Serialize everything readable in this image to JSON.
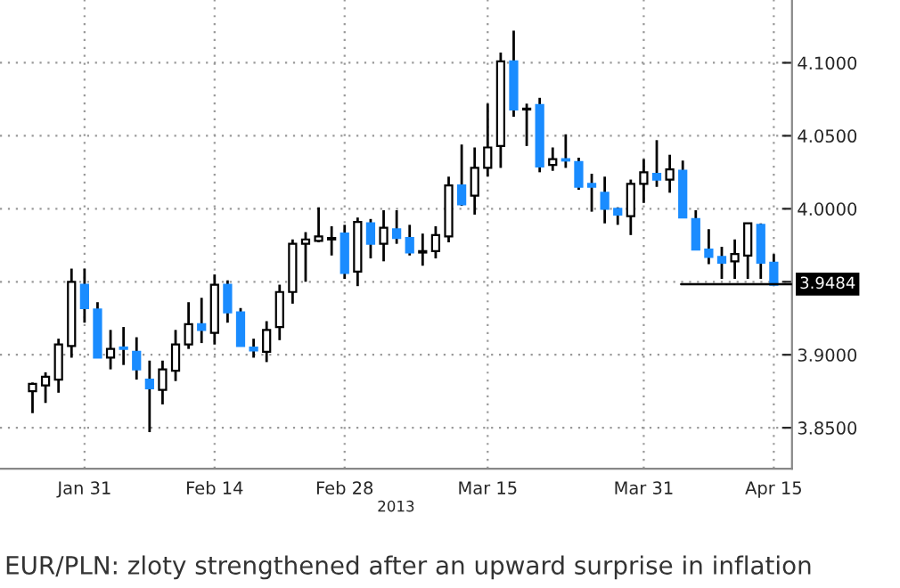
{
  "chart_data": {
    "type": "candlestick",
    "title": "EUR/PLN: zloty strengthened after an upward surprise in inflation",
    "xlabel": "2013",
    "categories": [
      null,
      null,
      null,
      null,
      "Jan 31",
      null,
      null,
      null,
      null,
      null,
      null,
      null,
      null,
      null,
      "Feb 14",
      null,
      null,
      null,
      null,
      null,
      null,
      null,
      null,
      null,
      "Feb 28",
      null,
      null,
      null,
      null,
      null,
      null,
      null,
      null,
      null,
      null,
      "Mar 15",
      null,
      null,
      null,
      null,
      null,
      null,
      null,
      null,
      null,
      null,
      null,
      "Mar 31",
      null,
      null,
      null,
      null,
      null,
      null,
      null,
      null,
      null,
      "Apr 15"
    ],
    "ohlc": [
      [
        3.875,
        3.881,
        3.86,
        3.88
      ],
      [
        3.879,
        3.888,
        3.867,
        3.885
      ],
      [
        3.883,
        3.911,
        3.874,
        3.907
      ],
      [
        3.906,
        3.959,
        3.898,
        3.95
      ],
      [
        3.948,
        3.959,
        3.922,
        3.932
      ],
      [
        3.931,
        3.936,
        3.898,
        3.898
      ],
      [
        3.898,
        3.917,
        3.89,
        3.904
      ],
      [
        3.905,
        3.919,
        3.893,
        3.904
      ],
      [
        3.902,
        3.912,
        3.883,
        3.89
      ],
      [
        3.883,
        3.896,
        3.847,
        3.877
      ],
      [
        3.876,
        3.896,
        3.866,
        3.89
      ],
      [
        3.889,
        3.917,
        3.882,
        3.907
      ],
      [
        3.907,
        3.936,
        3.904,
        3.921
      ],
      [
        3.921,
        3.939,
        3.908,
        3.917
      ],
      [
        3.915,
        3.955,
        3.907,
        3.948
      ],
      [
        3.948,
        3.951,
        3.922,
        3.929
      ],
      [
        3.929,
        3.932,
        3.906,
        3.906
      ],
      [
        3.905,
        3.911,
        3.898,
        3.903
      ],
      [
        3.902,
        3.923,
        3.895,
        3.917
      ],
      [
        3.919,
        3.948,
        3.91,
        3.943
      ],
      [
        3.943,
        3.979,
        3.935,
        3.976
      ],
      [
        3.976,
        3.984,
        3.95,
        3.979
      ],
      [
        3.978,
        4.001,
        3.977,
        3.981
      ],
      [
        3.979,
        3.988,
        3.968,
        3.98
      ],
      [
        3.983,
        3.989,
        3.952,
        3.956
      ],
      [
        3.957,
        3.994,
        3.947,
        3.991
      ],
      [
        3.99,
        3.993,
        3.966,
        3.976
      ],
      [
        3.976,
        3.999,
        3.964,
        3.987
      ],
      [
        3.986,
        3.999,
        3.976,
        3.98
      ],
      [
        3.98,
        3.989,
        3.968,
        3.97
      ],
      [
        3.97,
        3.983,
        3.961,
        3.971
      ],
      [
        3.971,
        3.988,
        3.966,
        3.982
      ],
      [
        3.981,
        4.022,
        3.977,
        4.016
      ],
      [
        4.016,
        4.044,
        4.002,
        4.003
      ],
      [
        4.009,
        4.042,
        3.996,
        4.028
      ],
      [
        4.028,
        4.072,
        4.022,
        4.042
      ],
      [
        4.043,
        4.107,
        4.028,
        4.101
      ],
      [
        4.101,
        4.122,
        4.063,
        4.068
      ],
      [
        4.068,
        4.072,
        4.043,
        4.068
      ],
      [
        4.071,
        4.076,
        4.025,
        4.029
      ],
      [
        4.03,
        4.042,
        4.026,
        4.034
      ],
      [
        4.034,
        4.051,
        4.028,
        4.033
      ],
      [
        4.032,
        4.035,
        4.013,
        4.015
      ],
      [
        4.017,
        4.024,
        3.998,
        4.015
      ],
      [
        4.011,
        4.022,
        3.99,
        4.0
      ],
      [
        4.0,
        4.001,
        3.989,
        3.996
      ],
      [
        3.995,
        4.02,
        3.982,
        4.017
      ],
      [
        4.017,
        4.034,
        4.004,
        4.025
      ],
      [
        4.024,
        4.047,
        4.015,
        4.02
      ],
      [
        4.02,
        4.037,
        4.011,
        4.027
      ],
      [
        4.026,
        4.033,
        3.994,
        3.994
      ],
      [
        3.993,
        3.999,
        3.972,
        3.972
      ],
      [
        3.972,
        3.986,
        3.962,
        3.967
      ],
      [
        3.967,
        3.974,
        3.952,
        3.963
      ],
      [
        3.964,
        3.979,
        3.952,
        3.969
      ],
      [
        3.968,
        3.99,
        3.952,
        3.99
      ],
      [
        3.989,
        3.99,
        3.952,
        3.963
      ],
      [
        3.963,
        3.969,
        3.948,
        3.948
      ]
    ],
    "ylim": [
      3.822,
      4.143
    ],
    "yticks": [
      {
        "value": 3.85,
        "label": "3.8500"
      },
      {
        "value": 3.9,
        "label": "3.9000"
      },
      {
        "value": 3.95,
        "label": null
      },
      {
        "value": 4.0,
        "label": "4.0000"
      },
      {
        "value": 4.05,
        "label": "4.0500"
      },
      {
        "value": 4.1,
        "label": "4.1000"
      }
    ],
    "ref_lines": [
      {
        "axis": "y",
        "value": 3.9484,
        "label": "3.9484"
      }
    ],
    "grid": true
  }
}
